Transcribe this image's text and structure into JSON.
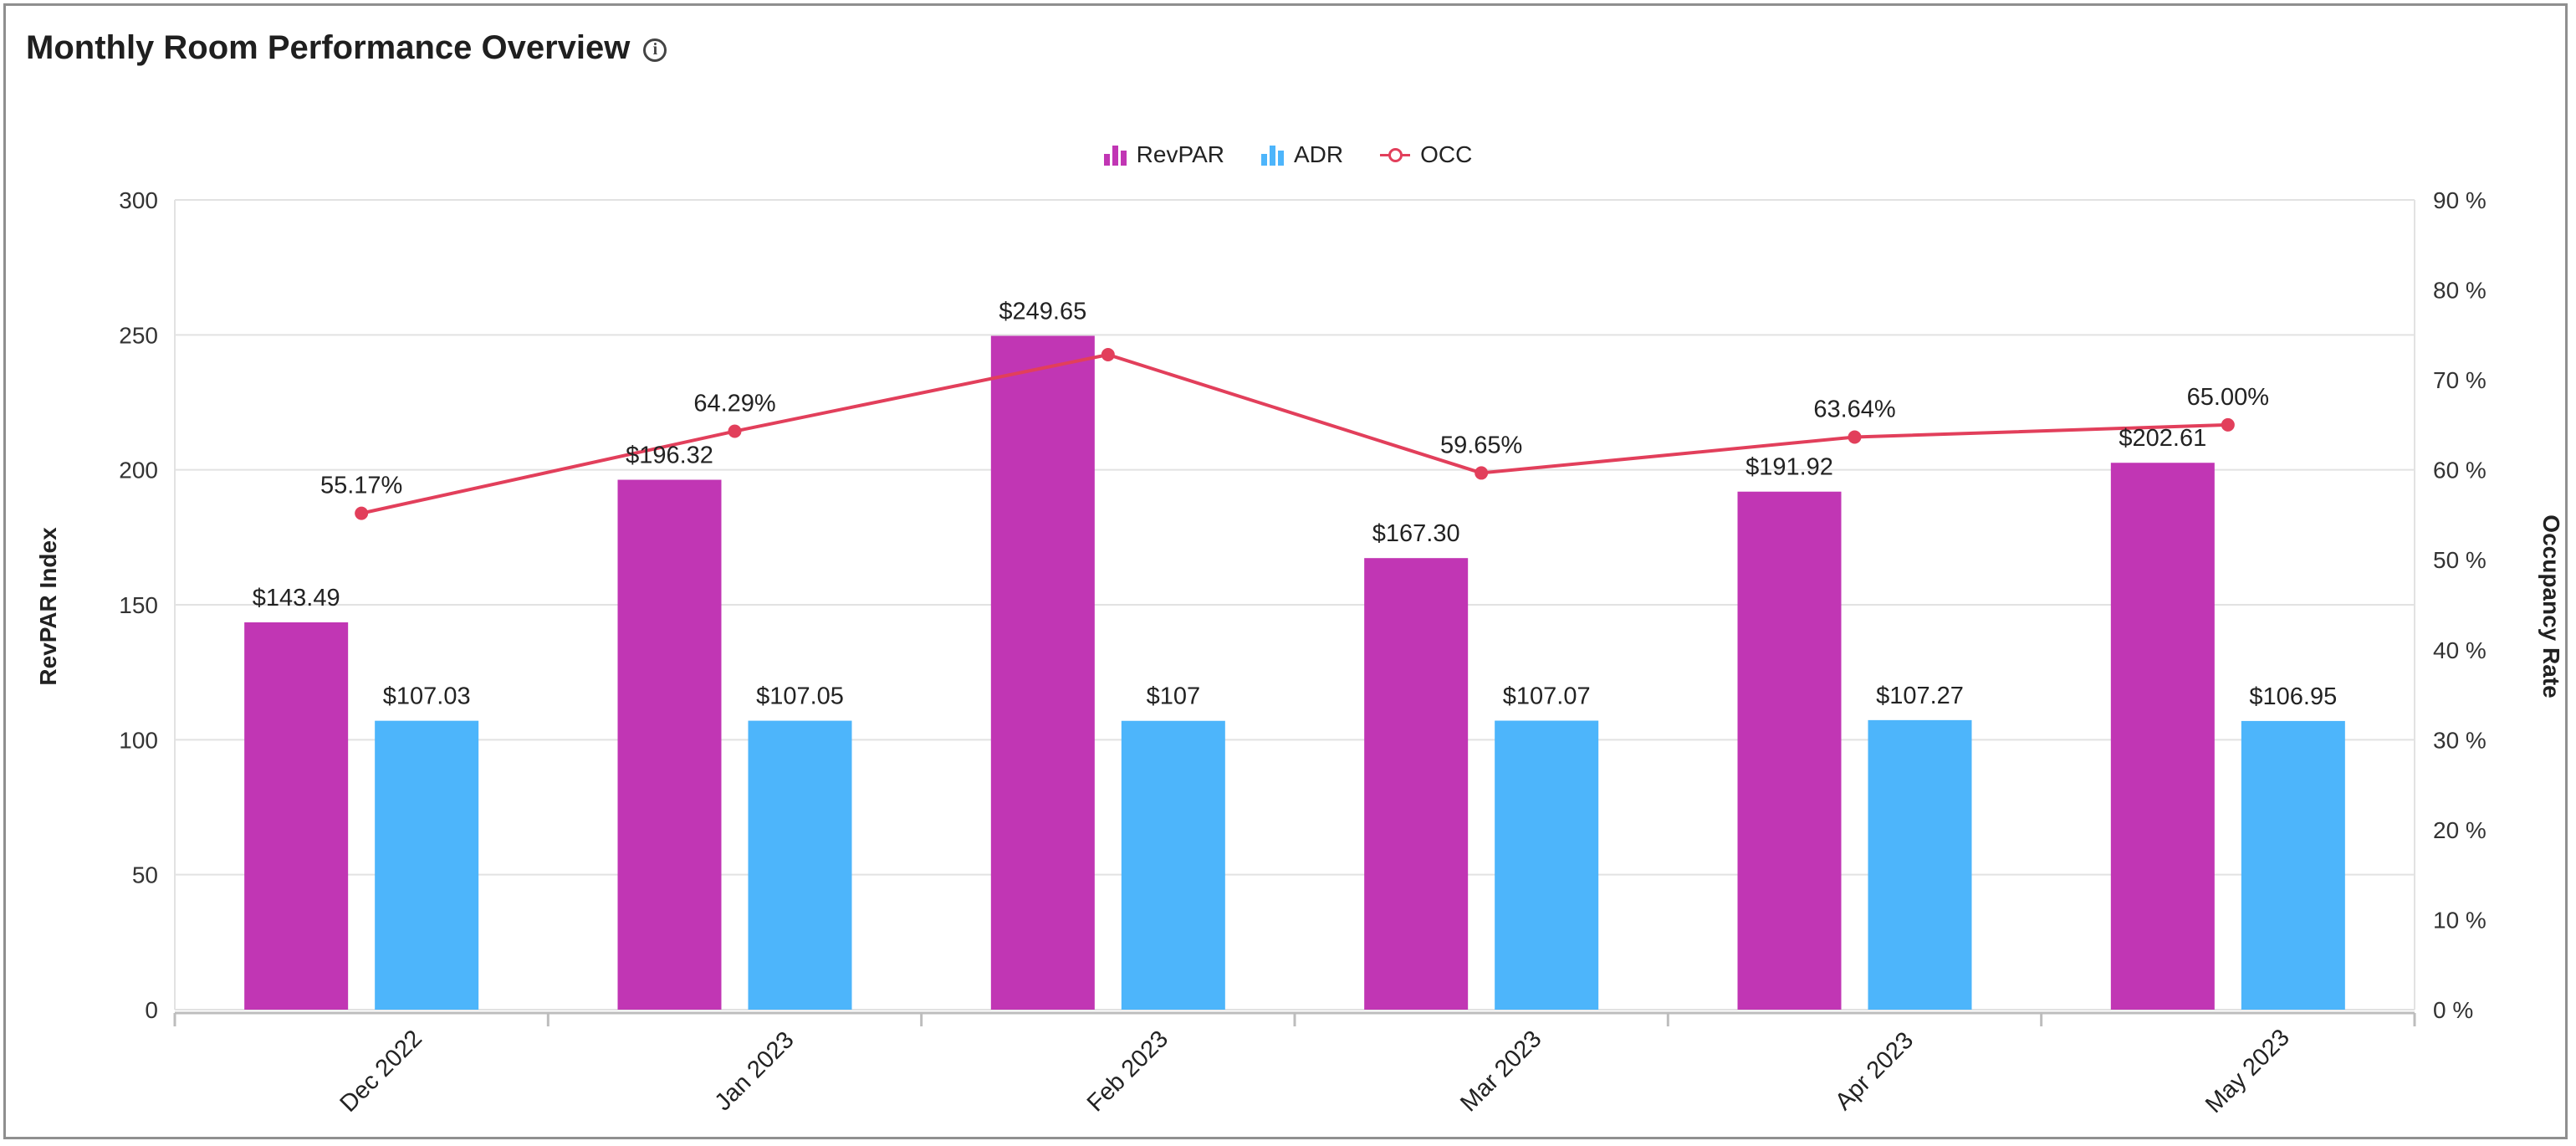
{
  "title": "Monthly Room Performance Overview",
  "info_icon": "info-icon",
  "colors": {
    "revpar": "#c136b4",
    "adr": "#4db5fb",
    "occ": "#e23f5b",
    "grid": "#e2e2e2",
    "axis": "#bdbdbd"
  },
  "chart_data": {
    "type": "bar",
    "categories": [
      "Dec 2022",
      "Jan 2023",
      "Feb 2023",
      "Mar 2023",
      "Apr 2023",
      "May 2023"
    ],
    "series": [
      {
        "name": "RevPAR",
        "type": "bar",
        "axis": "left",
        "values": [
          143.49,
          196.32,
          249.65,
          167.3,
          191.92,
          202.61
        ],
        "labels": [
          "$143.49",
          "$196.32",
          "$249.65",
          "$167.30",
          "$191.92",
          "$202.61"
        ]
      },
      {
        "name": "ADR",
        "type": "bar",
        "axis": "left",
        "values": [
          107.03,
          107.05,
          107,
          107.07,
          107.27,
          106.95
        ],
        "labels": [
          "$107.03",
          "$107.05",
          "$107",
          "$107.07",
          "$107.27",
          "$106.95"
        ]
      },
      {
        "name": "OCC",
        "type": "line",
        "axis": "right",
        "values": [
          55.17,
          64.29,
          72.8,
          59.65,
          63.64,
          65.0
        ],
        "labels": [
          "55.17%",
          "64.29%",
          "",
          "59.65%",
          "63.64%",
          "65.00%"
        ]
      }
    ],
    "ylabel": "RevPAR Index",
    "y2label": "Occupancy Rate",
    "ylim": [
      0,
      300
    ],
    "y2lim": [
      0,
      90
    ],
    "yticks": [
      "0",
      "50",
      "100",
      "150",
      "200",
      "250",
      "300"
    ],
    "y2ticks": [
      "0 %",
      "10 %",
      "20 %",
      "30 %",
      "40 %",
      "50 %",
      "60 %",
      "70 %",
      "80 %",
      "90 %"
    ],
    "legend_position": "top-center",
    "grid": true
  }
}
